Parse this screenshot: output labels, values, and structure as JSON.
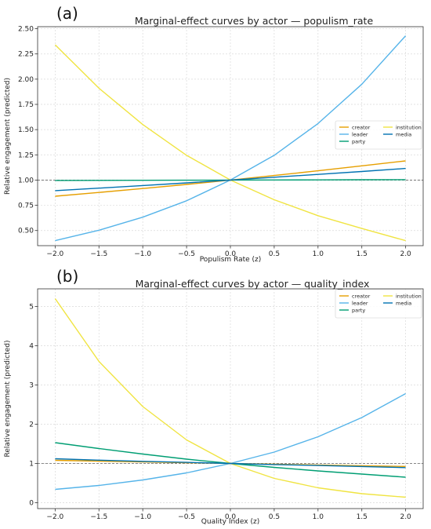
{
  "chart_data": [
    {
      "type": "line",
      "panel_label": "(a)",
      "title": "Marginal-effect curves by actor — populism_rate",
      "xlabel": "Populism Rate (z)",
      "ylabel": "Relative engagement (predicted)",
      "xlim": [
        -2.2,
        2.2
      ],
      "ylim": [
        0.35,
        2.52
      ],
      "xticks": [
        -2.0,
        -1.5,
        -1.0,
        -0.5,
        0.0,
        0.5,
        1.0,
        1.5,
        2.0
      ],
      "xtick_labels": [
        "−2.0",
        "−1.5",
        "−1.0",
        "−0.5",
        "0.0",
        "0.5",
        "1.0",
        "1.5",
        "2.0"
      ],
      "yticks": [
        0.5,
        0.75,
        1.0,
        1.25,
        1.5,
        1.75,
        2.0,
        2.25,
        2.5
      ],
      "ytick_labels": [
        "0.50",
        "0.75",
        "1.00",
        "1.25",
        "1.50",
        "1.75",
        "2.00",
        "2.25",
        "2.50"
      ],
      "grid": true,
      "reference_line": 1.0,
      "legend_position": "center-right",
      "series": [
        {
          "name": "creator",
          "color": "#E69F00",
          "x": [
            -2.0,
            -1.5,
            -1.0,
            -0.5,
            0.0,
            0.5,
            1.0,
            1.5,
            2.0
          ],
          "y": [
            0.84,
            0.877,
            0.916,
            0.957,
            1.0,
            1.045,
            1.092,
            1.141,
            1.19
          ]
        },
        {
          "name": "leader",
          "color": "#56B4E9",
          "x": [
            -2.0,
            -1.5,
            -1.0,
            -0.5,
            0.0,
            0.5,
            1.0,
            1.5,
            2.0
          ],
          "y": [
            0.4,
            0.503,
            0.632,
            0.795,
            1.0,
            1.245,
            1.56,
            1.95,
            2.43
          ]
        },
        {
          "name": "party",
          "color": "#009E73",
          "x": [
            -2.0,
            -1.5,
            -1.0,
            -0.5,
            0.0,
            0.5,
            1.0,
            1.5,
            2.0
          ],
          "y": [
            0.996,
            0.997,
            0.998,
            0.999,
            1.0,
            1.001,
            1.002,
            1.003,
            1.004
          ]
        },
        {
          "name": "institution",
          "color": "#F0E442",
          "x": [
            -2.0,
            -1.5,
            -1.0,
            -0.5,
            0.0,
            0.5,
            1.0,
            1.5,
            2.0
          ],
          "y": [
            2.34,
            1.91,
            1.55,
            1.245,
            1.0,
            0.805,
            0.647,
            0.52,
            0.4
          ]
        },
        {
          "name": "media",
          "color": "#0072B2",
          "x": [
            -2.0,
            -1.5,
            -1.0,
            -0.5,
            0.0,
            0.5,
            1.0,
            1.5,
            2.0
          ],
          "y": [
            0.895,
            0.92,
            0.946,
            0.972,
            1.0,
            1.028,
            1.056,
            1.085,
            1.115
          ]
        }
      ]
    },
    {
      "type": "line",
      "panel_label": "(b)",
      "title": "Marginal-effect curves by actor — quality_index",
      "xlabel": "Quality Index (z)",
      "ylabel": "Relative engagement (predicted)",
      "xlim": [
        -2.2,
        2.2
      ],
      "ylim": [
        -0.15,
        5.45
      ],
      "xticks": [
        -2.0,
        -1.5,
        -1.0,
        -0.5,
        0.0,
        0.5,
        1.0,
        1.5,
        2.0
      ],
      "xtick_labels": [
        "−2.0",
        "−1.5",
        "−1.0",
        "−0.5",
        "0.0",
        "0.5",
        "1.0",
        "1.5",
        "2.0"
      ],
      "yticks": [
        0,
        1,
        2,
        3,
        4,
        5
      ],
      "ytick_labels": [
        "0",
        "1",
        "2",
        "3",
        "4",
        "5"
      ],
      "grid": true,
      "reference_line": 1.0,
      "legend_position": "top-right",
      "series": [
        {
          "name": "creator",
          "color": "#E69F00",
          "x": [
            -2.0,
            -1.5,
            -1.0,
            -0.5,
            0.0,
            0.5,
            1.0,
            1.5,
            2.0
          ],
          "y": [
            1.08,
            1.06,
            1.04,
            1.02,
            1.0,
            0.98,
            0.962,
            0.943,
            0.925
          ]
        },
        {
          "name": "leader",
          "color": "#56B4E9",
          "x": [
            -2.0,
            -1.5,
            -1.0,
            -0.5,
            0.0,
            0.5,
            1.0,
            1.5,
            2.0
          ],
          "y": [
            0.34,
            0.44,
            0.58,
            0.76,
            1.0,
            1.29,
            1.68,
            2.17,
            2.78
          ]
        },
        {
          "name": "party",
          "color": "#009E73",
          "x": [
            -2.0,
            -1.5,
            -1.0,
            -0.5,
            0.0,
            0.5,
            1.0,
            1.5,
            2.0
          ],
          "y": [
            1.53,
            1.38,
            1.24,
            1.11,
            1.0,
            0.9,
            0.81,
            0.73,
            0.65
          ]
        },
        {
          "name": "institution",
          "color": "#F0E442",
          "x": [
            -2.0,
            -1.5,
            -1.0,
            -0.5,
            0.0,
            0.5,
            1.0,
            1.5,
            2.0
          ],
          "y": [
            5.2,
            3.6,
            2.45,
            1.6,
            1.0,
            0.62,
            0.38,
            0.23,
            0.14
          ]
        },
        {
          "name": "media",
          "color": "#0072B2",
          "x": [
            -2.0,
            -1.5,
            -1.0,
            -0.5,
            0.0,
            0.5,
            1.0,
            1.5,
            2.0
          ],
          "y": [
            1.12,
            1.085,
            1.055,
            1.027,
            1.0,
            0.973,
            0.947,
            0.922,
            0.895
          ]
        }
      ]
    }
  ]
}
